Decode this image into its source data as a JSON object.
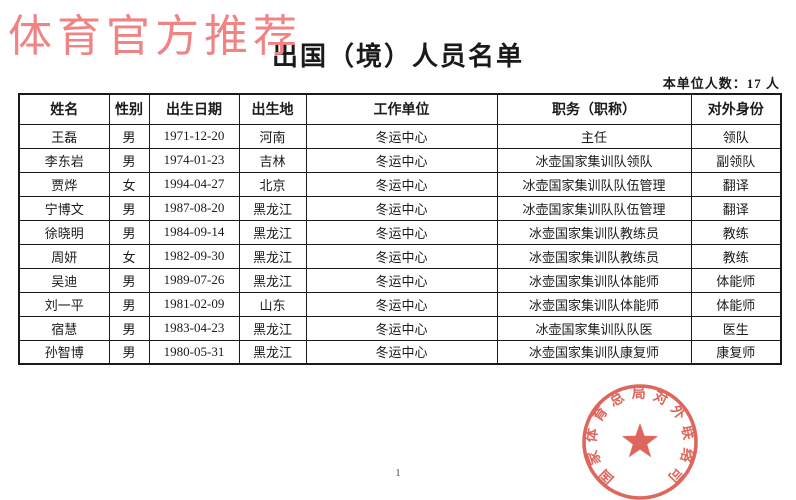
{
  "watermark": "体育官方推荐",
  "title": "出国（境）人员名单",
  "unit_count_note": "本单位人数：17 人",
  "page_number": "1",
  "seal": {
    "text": "国家体育总局对外联络司",
    "color": "#da5347"
  },
  "colors": {
    "watermark": "#f08484",
    "seal_red": "#da5347",
    "table_border": "#1a1a1a",
    "background": "#ffffff"
  },
  "table": {
    "headers": [
      "姓名",
      "性别",
      "出生日期",
      "出生地",
      "工作单位",
      "职务（职称）",
      "对外身份"
    ],
    "rows": [
      [
        "王磊",
        "男",
        "1971-12-20",
        "河南",
        "冬运中心",
        "主任",
        "领队"
      ],
      [
        "李东岩",
        "男",
        "1974-01-23",
        "吉林",
        "冬运中心",
        "冰壶国家集训队领队",
        "副领队"
      ],
      [
        "贾烨",
        "女",
        "1994-04-27",
        "北京",
        "冬运中心",
        "冰壶国家集训队队伍管理",
        "翻译"
      ],
      [
        "宁博文",
        "男",
        "1987-08-20",
        "黑龙江",
        "冬运中心",
        "冰壶国家集训队队伍管理",
        "翻译"
      ],
      [
        "徐晓明",
        "男",
        "1984-09-14",
        "黑龙江",
        "冬运中心",
        "冰壶国家集训队教练员",
        "教练"
      ],
      [
        "周妍",
        "女",
        "1982-09-30",
        "黑龙江",
        "冬运中心",
        "冰壶国家集训队教练员",
        "教练"
      ],
      [
        "吴迪",
        "男",
        "1989-07-26",
        "黑龙江",
        "冬运中心",
        "冰壶国家集训队体能师",
        "体能师"
      ],
      [
        "刘一平",
        "男",
        "1981-02-09",
        "山东",
        "冬运中心",
        "冰壶国家集训队体能师",
        "体能师"
      ],
      [
        "宿慧",
        "男",
        "1983-04-23",
        "黑龙江",
        "冬运中心",
        "冰壶国家集训队队医",
        "医生"
      ],
      [
        "孙智博",
        "男",
        "1980-05-31",
        "黑龙江",
        "冬运中心",
        "冰壶国家集训队康复师",
        "康复师"
      ]
    ]
  }
}
